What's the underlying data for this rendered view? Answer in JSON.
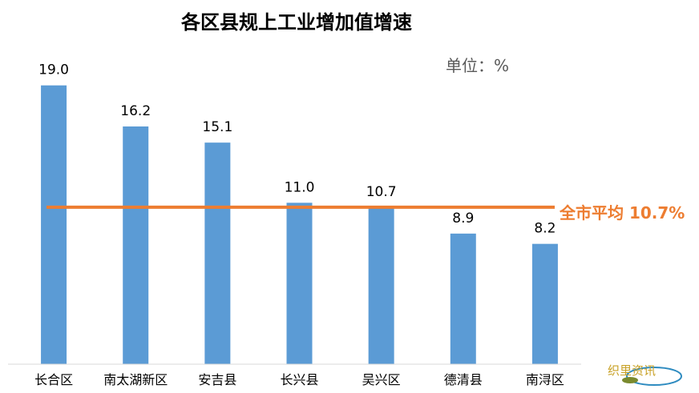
{
  "chart_data": {
    "type": "bar",
    "title": "各区县规上工业增加值增速",
    "unit_label": "单位：%",
    "categories": [
      "长合区",
      "南太湖新区",
      "安吉县",
      "长兴县",
      "吴兴区",
      "德清县",
      "南浔区"
    ],
    "value_labels": [
      "19.0",
      "16.2",
      "15.1",
      "11.0",
      "10.7",
      "8.9",
      "8.2"
    ],
    "series": [
      {
        "values": [
          19.0,
          16.2,
          15.1,
          11.0,
          10.7,
          8.9,
          8.2
        ]
      }
    ],
    "reference_line": {
      "value": 10.7,
      "label": "全市平均 10.7%"
    },
    "ylim": [
      0,
      21
    ],
    "grid": false,
    "bar_color": "#5b9bd5",
    "line_color": "#ed7d31"
  },
  "watermark": {
    "text": "织里资讯"
  }
}
